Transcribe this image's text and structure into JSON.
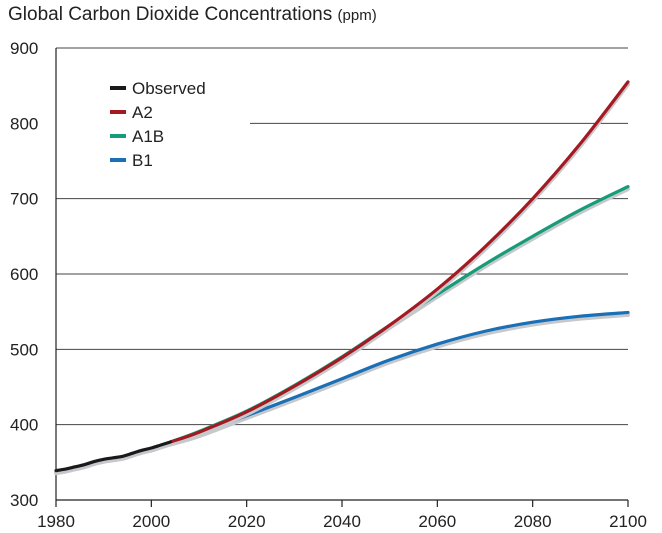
{
  "chart_data": {
    "type": "line",
    "title": "Global Carbon Dioxide Concentrations",
    "title_unit": "(ppm)",
    "xlabel": "",
    "ylabel": "",
    "xlim": [
      1980,
      2100
    ],
    "ylim": [
      300,
      900
    ],
    "x_ticks": [
      1980,
      2000,
      2020,
      2040,
      2060,
      2080,
      2100
    ],
    "y_ticks": [
      300,
      400,
      500,
      600,
      700,
      800,
      900
    ],
    "grid": "horizontal",
    "legend_position": "top-left",
    "series": [
      {
        "name": "Observed",
        "color": "#1a1a1a",
        "x": [
          1980,
          1982,
          1984,
          1986,
          1988,
          1990,
          1992,
          1994,
          1996,
          1998,
          2000,
          2002,
          2004
        ],
        "y": [
          339,
          341,
          344,
          347,
          351,
          354,
          356,
          358,
          362,
          366,
          369,
          373,
          377
        ]
      },
      {
        "name": "A2",
        "color": "#a31a22",
        "x": [
          2004,
          2010,
          2020,
          2030,
          2040,
          2050,
          2060,
          2070,
          2080,
          2090,
          2100
        ],
        "y": [
          377,
          390,
          417,
          451,
          489,
          532,
          580,
          636,
          700,
          773,
          855
        ]
      },
      {
        "name": "A1B",
        "color": "#169c78",
        "x": [
          2004,
          2010,
          2020,
          2030,
          2040,
          2050,
          2060,
          2070,
          2080,
          2090,
          2100
        ],
        "y": [
          377,
          391,
          418,
          452,
          490,
          532,
          573,
          613,
          650,
          685,
          716
        ]
      },
      {
        "name": "B1",
        "color": "#1a6fb5",
        "x": [
          2004,
          2010,
          2020,
          2030,
          2040,
          2050,
          2060,
          2070,
          2080,
          2090,
          2100
        ],
        "y": [
          377,
          388,
          412,
          436,
          461,
          486,
          507,
          524,
          536,
          544,
          549
        ]
      }
    ]
  }
}
